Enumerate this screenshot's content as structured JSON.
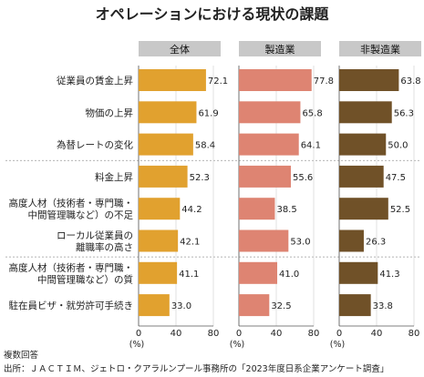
{
  "chart_data": {
    "type": "bar",
    "orientation": "horizontal",
    "title": "オペレーションにおける現状の課題",
    "categories": [
      [
        "従業員の賃金上昇"
      ],
      [
        "物価の上昇"
      ],
      [
        "為替レートの変化"
      ],
      [
        "料金上昇"
      ],
      [
        "高度人材（技術者・専門職・",
        "中間管理職など）の不足"
      ],
      [
        "ローカル従業員の",
        "離職率の高さ"
      ],
      [
        "高度人材（技術者・専門職・",
        "中間管理職など）の質"
      ],
      [
        "駐在員ビザ・就労許可手続き"
      ]
    ],
    "series": [
      {
        "name": "全体",
        "color": "#e1a12f",
        "values": [
          72.1,
          61.9,
          58.4,
          52.3,
          44.2,
          42.1,
          41.1,
          33.0
        ]
      },
      {
        "name": "製造業",
        "color": "#de8472",
        "values": [
          77.8,
          65.8,
          64.1,
          55.6,
          38.5,
          53.0,
          41.0,
          32.5
        ]
      },
      {
        "name": "非製造業",
        "color": "#705128",
        "values": [
          63.8,
          56.3,
          50.0,
          47.5,
          52.5,
          26.3,
          41.3,
          33.8
        ]
      }
    ],
    "xlim": [
      0,
      80
    ],
    "xticks": [
      0,
      40,
      80
    ],
    "xlabel": "(%)",
    "value_labels": [
      "72.1",
      "61.9",
      "58.4",
      "52.3",
      "44.2",
      "42.1",
      "41.1",
      "33.0",
      "77.8",
      "65.8",
      "64.1",
      "55.6",
      "38.5",
      "53.0",
      "41.0",
      "32.5",
      "63.8",
      "56.3",
      "50.0",
      "47.5",
      "52.5",
      "26.3",
      "41.3",
      "33.8"
    ]
  },
  "notes": {
    "multiple": "複数回答",
    "source": "出所：ＪＡＣＴＩＭ、ジェトロ・クアラルンプール事務所の「2023年度日系企業アンケート調査」"
  },
  "colors": {
    "header_bg": "#c8c8c8",
    "separator": "#999999"
  }
}
